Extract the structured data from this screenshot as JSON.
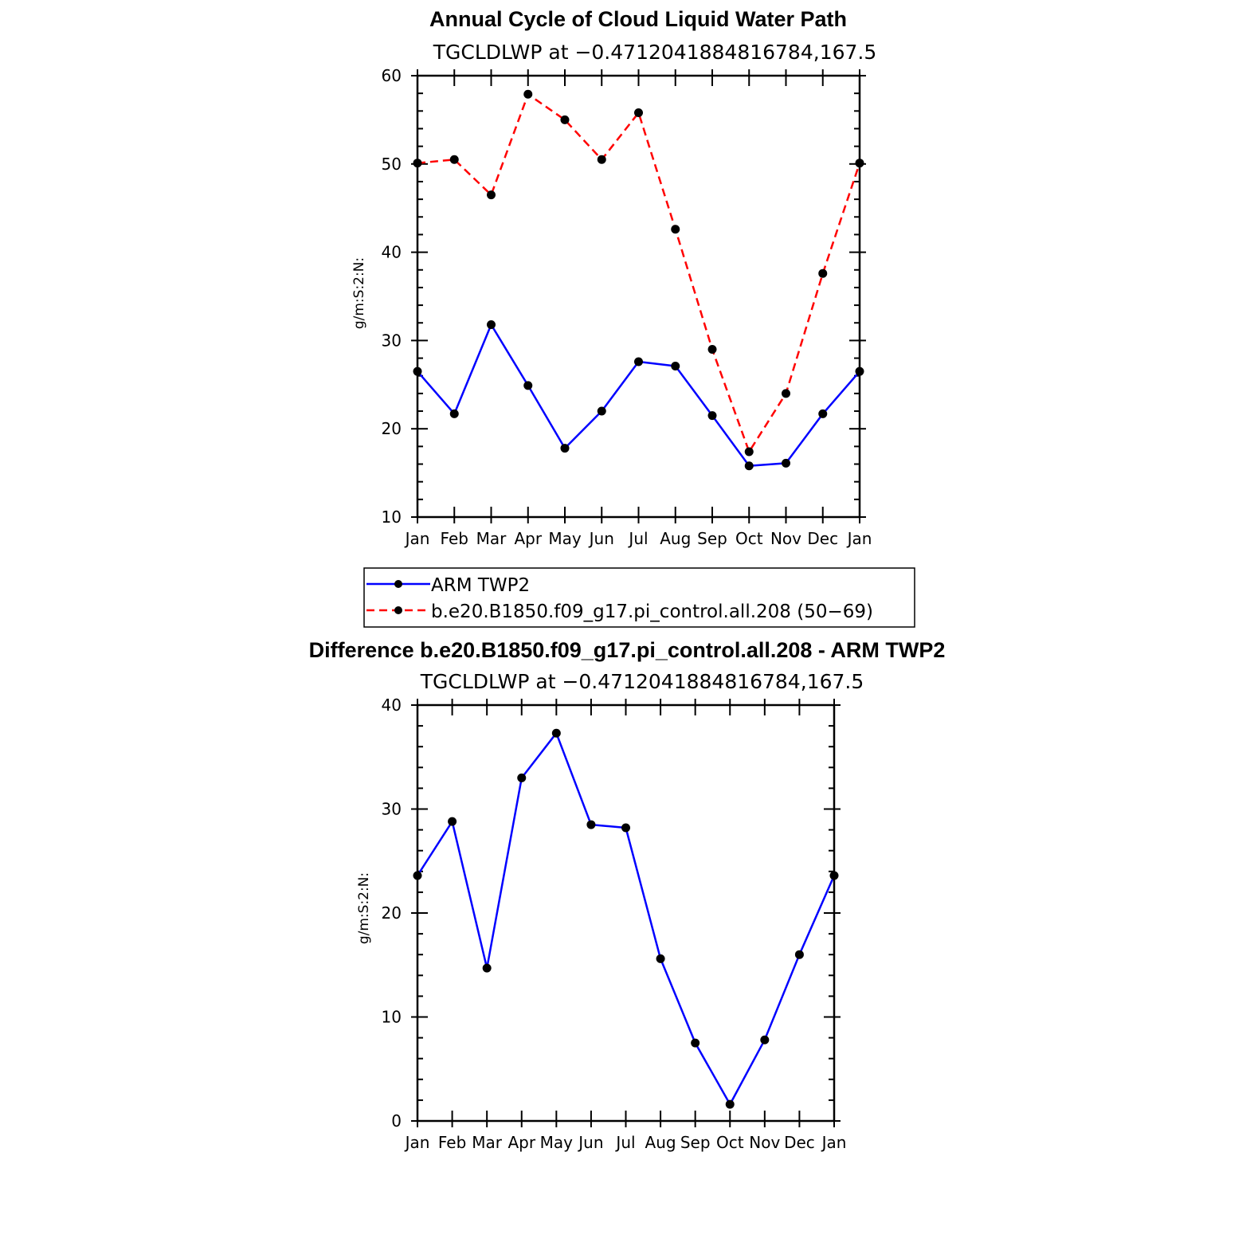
{
  "chart_data": [
    {
      "type": "line",
      "title": "Annual Cycle of Cloud Liquid Water Path",
      "subtitle": "TGCLDLWP at −0.4712041884816784,167.5",
      "xlabel": "",
      "ylabel": "g/m:S:2:N:",
      "categories": [
        "Jan",
        "Feb",
        "Mar",
        "Apr",
        "May",
        "Jun",
        "Jul",
        "Aug",
        "Sep",
        "Oct",
        "Nov",
        "Dec",
        "Jan"
      ],
      "ylim": [
        10,
        60
      ],
      "yticks": [
        "10",
        "20",
        "30",
        "40",
        "50",
        "60"
      ],
      "series": [
        {
          "name": "ARM TWP2",
          "color": "#0000ff",
          "dash": "solid",
          "values": [
            26.5,
            21.7,
            31.8,
            24.9,
            17.8,
            22.0,
            27.6,
            27.1,
            21.5,
            15.8,
            16.1,
            21.7,
            26.5
          ]
        },
        {
          "name": "b.e20.B1850.f09_g17.pi_control.all.208 (50−69)",
          "color": "#ff0000",
          "dash": "dashed",
          "values": [
            50.1,
            50.5,
            46.5,
            57.9,
            55.0,
            50.5,
            55.8,
            42.6,
            29.0,
            17.4,
            24.0,
            37.6,
            50.1
          ]
        }
      ],
      "legend": {
        "placement": "bottom",
        "entries": [
          "ARM TWP2",
          "b.e20.B1850.f09_g17.pi_control.all.208 (50−69)"
        ]
      }
    },
    {
      "type": "line",
      "title": "Difference b.e20.B1850.f09_g17.pi_control.all.208 - ARM TWP2",
      "subtitle": "TGCLDLWP at −0.4712041884816784,167.5",
      "xlabel": "",
      "ylabel": "g/m:S:2:N:",
      "categories": [
        "Jan",
        "Feb",
        "Mar",
        "Apr",
        "May",
        "Jun",
        "Jul",
        "Aug",
        "Sep",
        "Oct",
        "Nov",
        "Dec",
        "Jan"
      ],
      "ylim": [
        0,
        40
      ],
      "yticks": [
        "0",
        "10",
        "20",
        "30",
        "40"
      ],
      "series": [
        {
          "name": "Difference",
          "color": "#0000ff",
          "dash": "solid",
          "values": [
            23.6,
            28.8,
            14.7,
            33.0,
            37.3,
            28.5,
            28.2,
            15.6,
            7.5,
            1.6,
            7.8,
            16.0,
            23.6
          ]
        }
      ]
    }
  ]
}
